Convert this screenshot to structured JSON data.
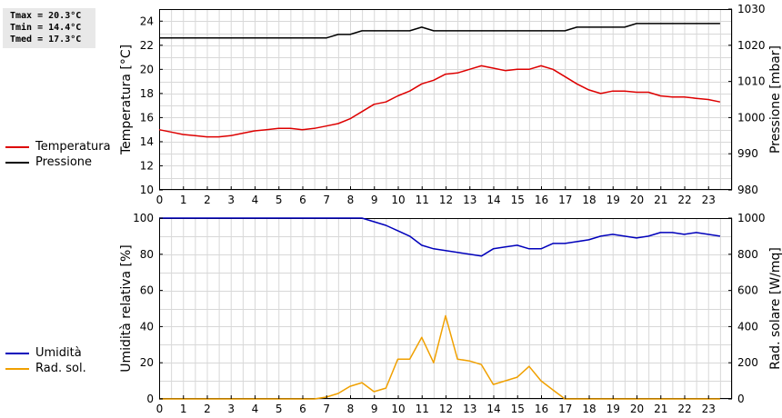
{
  "stats": {
    "tmax": "Tmax = 20.3°C",
    "tmin": "Tmin = 14.4°C",
    "tmed": "Tmed = 17.3°C"
  },
  "legend_top": [
    {
      "label": "Temperatura",
      "color": "#dd0000"
    },
    {
      "label": "Pressione",
      "color": "#000000"
    }
  ],
  "legend_bottom": [
    {
      "label": "Umidità",
      "color": "#0000bb"
    },
    {
      "label": "Rad. sol.",
      "color": "#f0a000"
    }
  ],
  "chart_data": [
    {
      "type": "line",
      "xlim": [
        0,
        24
      ],
      "xticks": [
        0,
        1,
        2,
        3,
        4,
        5,
        6,
        7,
        8,
        9,
        10,
        11,
        12,
        13,
        14,
        15,
        16,
        17,
        18,
        19,
        20,
        21,
        22,
        23
      ],
      "ylabel": "Temperatura [°C]",
      "ylim": [
        10,
        25
      ],
      "yticks": [
        10,
        12,
        14,
        16,
        18,
        20,
        22,
        24
      ],
      "y2label": "Pressione [mbar]",
      "y2lim": [
        980,
        1030
      ],
      "y2ticks": [
        980,
        990,
        1000,
        1010,
        1020,
        1030
      ],
      "grid": true,
      "series": [
        {
          "name": "Temperatura",
          "axis": "left",
          "color": "#dd0000",
          "x": [
            0,
            0.5,
            1,
            1.5,
            2,
            2.5,
            3,
            3.5,
            4,
            4.5,
            5,
            5.5,
            6,
            6.5,
            7,
            7.5,
            8,
            8.5,
            9,
            9.5,
            10,
            10.5,
            11,
            11.5,
            12,
            12.5,
            13,
            13.5,
            14,
            14.5,
            15,
            15.5,
            16,
            16.5,
            17,
            17.5,
            18,
            18.5,
            19,
            19.5,
            20,
            20.5,
            21,
            21.5,
            22,
            22.5,
            23,
            23.5
          ],
          "y": [
            15.0,
            14.8,
            14.6,
            14.5,
            14.4,
            14.4,
            14.5,
            14.7,
            14.9,
            15.0,
            15.1,
            15.1,
            15.0,
            15.1,
            15.3,
            15.5,
            15.9,
            16.5,
            17.1,
            17.3,
            17.8,
            18.2,
            18.8,
            19.1,
            19.6,
            19.7,
            20.0,
            20.3,
            20.1,
            19.9,
            20.0,
            20.0,
            20.3,
            20.0,
            19.4,
            18.8,
            18.3,
            18.0,
            18.2,
            18.2,
            18.1,
            18.1,
            17.8,
            17.7,
            17.7,
            17.6,
            17.5,
            17.3
          ]
        },
        {
          "name": "Pressione",
          "axis": "right",
          "color": "#000000",
          "x": [
            0,
            7,
            7.5,
            8,
            8.5,
            9,
            10.5,
            11,
            11.5,
            17,
            17.5,
            19.5,
            20,
            23.5
          ],
          "y": [
            1022,
            1022,
            1023,
            1023,
            1024,
            1024,
            1024,
            1025,
            1024,
            1024,
            1025,
            1025,
            1026,
            1026
          ]
        }
      ]
    },
    {
      "type": "line",
      "xlim": [
        0,
        24
      ],
      "xticks": [
        0,
        1,
        2,
        3,
        4,
        5,
        6,
        7,
        8,
        9,
        10,
        11,
        12,
        13,
        14,
        15,
        16,
        17,
        18,
        19,
        20,
        21,
        22,
        23
      ],
      "ylabel": "Umidità relativa [%]",
      "ylim": [
        0,
        100
      ],
      "yticks": [
        0,
        20,
        40,
        60,
        80,
        100
      ],
      "y2label": "Rad. solare [W/mq]",
      "y2lim": [
        0,
        1000
      ],
      "y2ticks": [
        0,
        200,
        400,
        600,
        800,
        1000
      ],
      "grid": true,
      "series": [
        {
          "name": "Umidità",
          "axis": "left",
          "color": "#0000bb",
          "x": [
            0,
            8.5,
            9,
            9.5,
            10,
            10.5,
            11,
            11.5,
            12,
            12.5,
            13,
            13.5,
            14,
            14.5,
            15,
            15.5,
            16,
            16.5,
            17,
            17.5,
            18,
            18.5,
            19,
            19.5,
            20,
            20.5,
            21,
            21.5,
            22,
            22.5,
            23,
            23.5
          ],
          "y": [
            100,
            100,
            98,
            96,
            93,
            90,
            85,
            83,
            82,
            81,
            80,
            79,
            83,
            84,
            85,
            83,
            83,
            86,
            86,
            87,
            88,
            90,
            91,
            90,
            89,
            90,
            92,
            92,
            91,
            92,
            91,
            90
          ]
        },
        {
          "name": "Rad. sol.",
          "axis": "right",
          "color": "#f0a000",
          "x": [
            0,
            6.5,
            7,
            7.5,
            8,
            8.5,
            9,
            9.5,
            10,
            10.5,
            11,
            11.5,
            12,
            12.5,
            13,
            13.5,
            14,
            14.5,
            15,
            15.5,
            16,
            16.5,
            17,
            23.5
          ],
          "y": [
            0,
            0,
            10,
            30,
            70,
            90,
            40,
            60,
            220,
            220,
            340,
            200,
            460,
            220,
            210,
            190,
            80,
            100,
            120,
            180,
            100,
            50,
            0,
            0
          ]
        }
      ]
    }
  ]
}
